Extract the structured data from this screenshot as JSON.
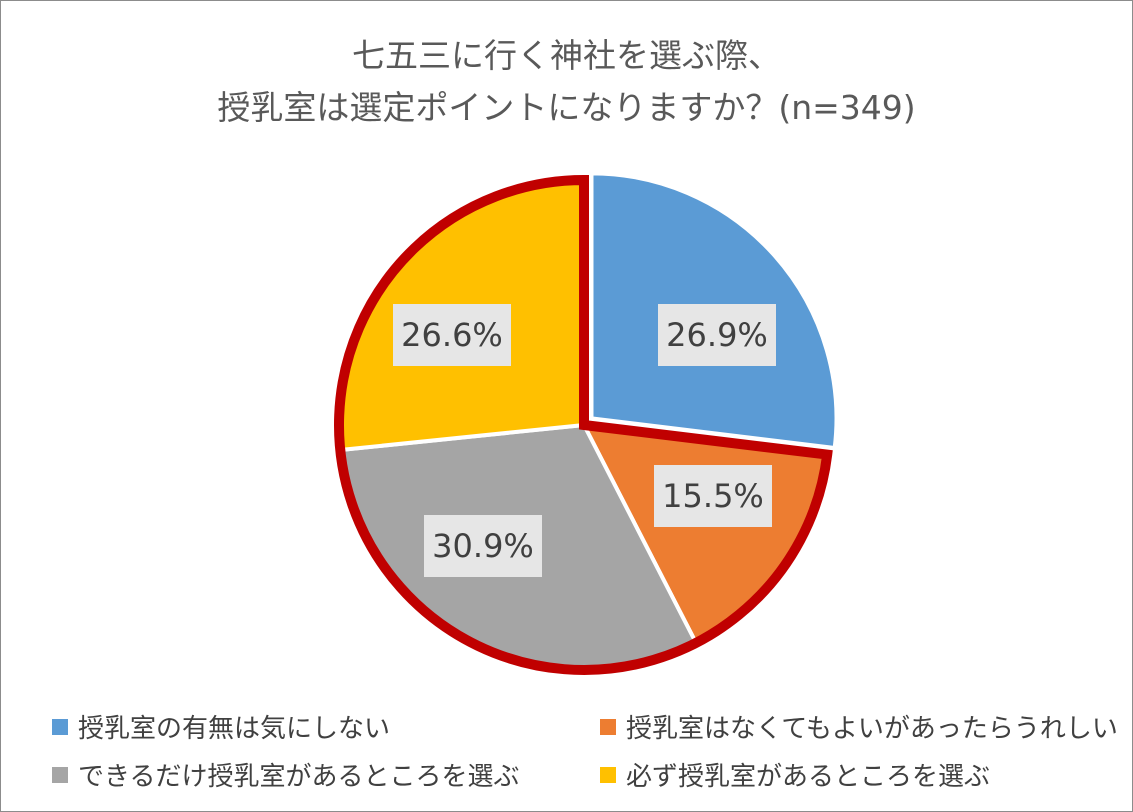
{
  "chart_data": {
    "type": "pie",
    "title_lines": [
      "七五三に行く神社を選ぶ際、",
      "授乳室は選定ポイントになりますか？(n=349)"
    ],
    "slices": [
      {
        "label": "授乳室の有無は気にしない",
        "value": 26.9,
        "display": "26.9%",
        "color": "#5b9bd5",
        "highlighted": false
      },
      {
        "label": "授乳室はなくてもよいがあったらうれしい",
        "value": 15.5,
        "display": "15.5%",
        "color": "#ed7d31",
        "highlighted": true
      },
      {
        "label": "できるだけ授乳室があるところを選ぶ",
        "value": 30.9,
        "display": "30.9%",
        "color": "#a5a5a5",
        "highlighted": true
      },
      {
        "label": "必ず授乳室があるところを選ぶ",
        "value": 26.6,
        "display": "26.6%",
        "color": "#ffc000",
        "highlighted": true
      }
    ],
    "highlight_color": "#c00000",
    "legend_position": "bottom"
  }
}
